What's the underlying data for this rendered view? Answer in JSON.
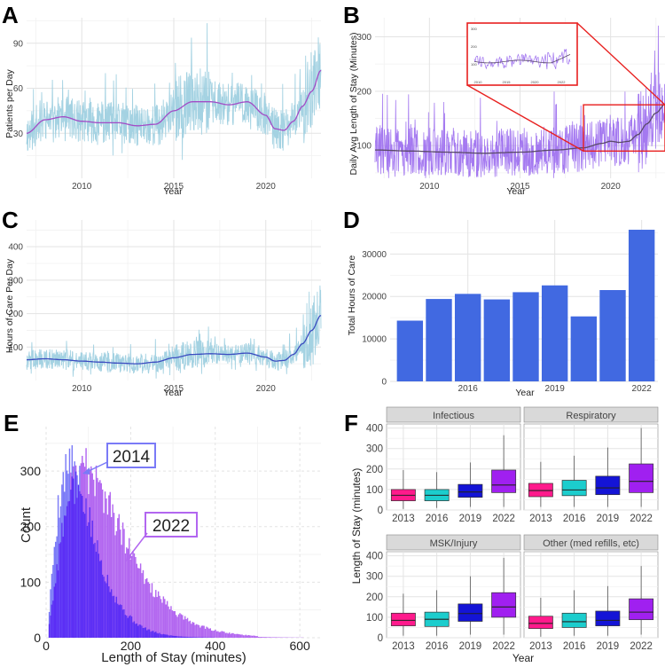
{
  "colors": {
    "noise_a": "#9fd0e0",
    "trend_a": "#a24cc6",
    "noise_b": "#9f72ef",
    "trend_b": "#5a4a6a",
    "noise_c": "#9fd0e0",
    "trend_c": "#3b4cc0",
    "bar_d": "#4169e1",
    "hist_2014": "#7a7af7",
    "hist_2022": "#b266f0",
    "hist_overlap": "#5b2ef5",
    "box_2013": "#ff1a8c",
    "box_2016": "#1ccdcd",
    "box_2019": "#1414d6",
    "box_2022": "#a020f0",
    "zoom_box": "#e8201f",
    "strip_bg": "#d9d9d9"
  },
  "chart_data": [
    {
      "panel": "A",
      "type": "line",
      "ylabel": "Patients per Day",
      "xlabel": "Year",
      "xlim": [
        2007.0,
        2023.0
      ],
      "ylim": [
        0,
        107
      ],
      "yticks": [
        30,
        60,
        90
      ],
      "xticks": [
        2010,
        2015,
        2020
      ],
      "trend": {
        "x": [
          2007.0,
          2008.0,
          2009.0,
          2010.0,
          2011.0,
          2012.0,
          2013.0,
          2014.0,
          2015.0,
          2016.0,
          2017.0,
          2018.0,
          2019.0,
          2020.0,
          2020.5,
          2021.0,
          2021.5,
          2022.0,
          2022.5,
          2023.0
        ],
        "y": [
          30,
          39,
          41,
          38,
          37,
          37,
          35,
          36,
          45,
          51,
          51,
          49,
          51,
          42,
          33,
          32,
          38,
          48,
          58,
          72
        ]
      },
      "noise_amplitude": 14
    },
    {
      "panel": "B",
      "type": "line",
      "ylabel": "Daily Avg Length of Stay (Minutes)",
      "xlabel": "Year",
      "xlim": [
        2007.0,
        2023.0
      ],
      "ylim": [
        40,
        335
      ],
      "yticks": [
        100,
        200,
        300
      ],
      "xticks": [
        2010,
        2015,
        2020
      ],
      "trend": {
        "x": [
          2007.0,
          2009.0,
          2011.0,
          2013.0,
          2015.0,
          2017.0,
          2018.5,
          2019.5,
          2020.0,
          2020.5,
          2021.0,
          2021.5,
          2022.0,
          2022.5,
          2023.0
        ],
        "y": [
          92,
          90,
          88,
          86,
          88,
          92,
          96,
          104,
          108,
          106,
          108,
          120,
          140,
          160,
          176
        ]
      },
      "noise_amplitude": 45,
      "zoom_region": {
        "x": [
          2018.5,
          2023.0
        ],
        "y": [
          90,
          175
        ]
      },
      "inset_tick_labels": [
        "300",
        "200",
        "100",
        "2010",
        "2015",
        "2020",
        "2022"
      ]
    },
    {
      "panel": "C",
      "type": "line",
      "ylabel": "Hours of Care Per Day",
      "xlabel": "Year",
      "xlim": [
        2007.0,
        2023.0
      ],
      "ylim": [
        0,
        480
      ],
      "yticks": [
        100,
        200,
        300,
        400
      ],
      "xticks": [
        2010,
        2015,
        2020
      ],
      "trend": {
        "x": [
          2007.0,
          2008.0,
          2009.0,
          2010.0,
          2011.0,
          2012.0,
          2013.0,
          2014.0,
          2015.0,
          2016.0,
          2017.0,
          2018.0,
          2019.0,
          2020.0,
          2020.5,
          2021.0,
          2021.5,
          2022.0,
          2022.5,
          2023.0
        ],
        "y": [
          62,
          65,
          62,
          58,
          55,
          52,
          50,
          55,
          68,
          78,
          80,
          78,
          82,
          70,
          58,
          60,
          78,
          110,
          150,
          195
        ]
      },
      "noise_amplitude": 30
    },
    {
      "panel": "D",
      "type": "bar",
      "ylabel": "Total Hours of Care",
      "xlabel": "Year",
      "categories": [
        "2014",
        "2015",
        "2016",
        "2017",
        "2018",
        "2019",
        "2020",
        "2021",
        "2022"
      ],
      "values": [
        14300,
        19400,
        20600,
        19300,
        21000,
        22600,
        15300,
        21500,
        35700
      ],
      "xtick_labels": [
        "2016",
        "2019",
        "2022"
      ],
      "ylim": [
        0,
        38000
      ],
      "yticks": [
        0,
        10000,
        20000,
        30000
      ]
    },
    {
      "panel": "E",
      "type": "histogram",
      "ylabel": "Count",
      "xlabel": "Length of Stay (minutes)",
      "xlim": [
        0,
        650
      ],
      "ylim": [
        0,
        380
      ],
      "xticks": [
        0,
        200,
        400,
        600
      ],
      "yticks": [
        0,
        100,
        200,
        300
      ],
      "series": [
        {
          "name": "2014",
          "mode": 55,
          "peak": 360,
          "spread": 80
        },
        {
          "name": "2022",
          "mode": 90,
          "peak": 300,
          "spread": 130
        }
      ],
      "annotations": [
        "2014",
        "2022"
      ]
    },
    {
      "panel": "F",
      "type": "box",
      "ylabel": "Length of Stay (minutes)",
      "xlabel": "Year",
      "ylim": [
        0,
        420
      ],
      "yticks": [
        0,
        100,
        200,
        300,
        400
      ],
      "categories": [
        "2013",
        "2016",
        "2019",
        "2022"
      ],
      "facets": [
        {
          "name": "Infectious",
          "boxes": [
            {
              "min": 5,
              "q1": 45,
              "median": 72,
              "q3": 100,
              "max": 195
            },
            {
              "min": 10,
              "q1": 45,
              "median": 72,
              "q3": 100,
              "max": 185
            },
            {
              "min": 15,
              "q1": 62,
              "median": 88,
              "q3": 125,
              "max": 232
            },
            {
              "min": 15,
              "q1": 85,
              "median": 122,
              "q3": 195,
              "max": 365
            }
          ]
        },
        {
          "name": "Respiratory",
          "boxes": [
            {
              "min": 15,
              "q1": 65,
              "median": 95,
              "q3": 130,
              "max": 235
            },
            {
              "min": 15,
              "q1": 70,
              "median": 98,
              "q3": 145,
              "max": 265
            },
            {
              "min": 15,
              "q1": 75,
              "median": 108,
              "q3": 165,
              "max": 305
            },
            {
              "min": 15,
              "q1": 85,
              "median": 140,
              "q3": 225,
              "max": 400
            }
          ]
        },
        {
          "name": "MSK/Injury",
          "boxes": [
            {
              "min": 10,
              "q1": 58,
              "median": 85,
              "q3": 120,
              "max": 215
            },
            {
              "min": 10,
              "q1": 55,
              "median": 90,
              "q3": 125,
              "max": 232
            },
            {
              "min": 15,
              "q1": 80,
              "median": 118,
              "q3": 165,
              "max": 300
            },
            {
              "min": 15,
              "q1": 100,
              "median": 150,
              "q3": 220,
              "max": 390
            }
          ]
        },
        {
          "name": "Other (med refills, etc)",
          "boxes": [
            {
              "min": 5,
              "q1": 45,
              "median": 70,
              "q3": 105,
              "max": 195
            },
            {
              "min": 10,
              "q1": 50,
              "median": 78,
              "q3": 120,
              "max": 232
            },
            {
              "min": 10,
              "q1": 58,
              "median": 85,
              "q3": 130,
              "max": 252
            },
            {
              "min": 15,
              "q1": 88,
              "median": 125,
              "q3": 190,
              "max": 350
            }
          ]
        }
      ]
    }
  ]
}
